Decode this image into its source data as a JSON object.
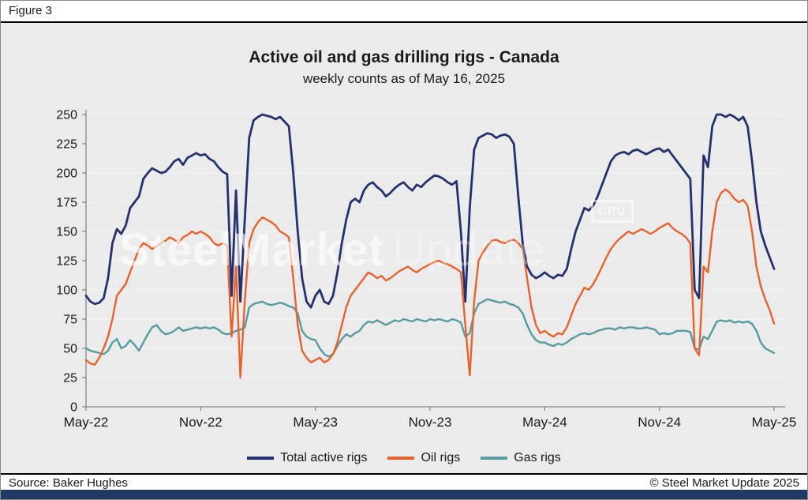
{
  "figure_label": "Figure 3",
  "title": "Active oil and gas drilling rigs - Canada",
  "subtitle": "weekly counts as of May 16, 2025",
  "source": "Source: Baker Hughes",
  "copyright": "© Steel Market Update 2025",
  "watermark": {
    "part1": "SteelMarket",
    "part2": "Update",
    "logo": "CRU"
  },
  "colors": {
    "background": "#ebebeb",
    "footer_bar": "#1f3864",
    "grid": "#f6f6f6",
    "axis": "#6b6b6b"
  },
  "chart_data": {
    "type": "line",
    "title": "Active oil and gas drilling rigs - Canada",
    "subtitle": "weekly counts as of May 16, 2025",
    "x_unit": "week",
    "x_start": "May-22",
    "x_end": "May-25",
    "ylim": [
      0,
      250
    ],
    "ytick_step": 25,
    "grid": true,
    "legend_position": "bottom",
    "xticks": [
      {
        "index": 0,
        "label": "May-22"
      },
      {
        "index": 26,
        "label": "Nov-22"
      },
      {
        "index": 52,
        "label": "May-23"
      },
      {
        "index": 78,
        "label": "Nov-23"
      },
      {
        "index": 104,
        "label": "May-24"
      },
      {
        "index": 130,
        "label": "Nov-24"
      },
      {
        "index": 156,
        "label": "May-25"
      }
    ],
    "series": [
      {
        "name": "Total active rigs",
        "color": "#25316d",
        "width": 2.8,
        "values": [
          95,
          90,
          88,
          89,
          93,
          110,
          140,
          152,
          148,
          155,
          170,
          175,
          180,
          195,
          200,
          204,
          202,
          200,
          201,
          205,
          210,
          212,
          207,
          213,
          215,
          217,
          215,
          216,
          212,
          210,
          205,
          201,
          199,
          95,
          185,
          90,
          160,
          230,
          245,
          248,
          250,
          249,
          248,
          246,
          248,
          244,
          240,
          200,
          150,
          110,
          90,
          85,
          95,
          100,
          90,
          88,
          95,
          115,
          140,
          160,
          175,
          178,
          175,
          185,
          190,
          192,
          188,
          185,
          180,
          183,
          187,
          190,
          192,
          188,
          185,
          190,
          188,
          192,
          195,
          198,
          197,
          195,
          192,
          190,
          193,
          150,
          90,
          170,
          220,
          230,
          232,
          234,
          233,
          230,
          232,
          233,
          231,
          225,
          180,
          140,
          120,
          113,
          110,
          112,
          115,
          112,
          110,
          113,
          112,
          118,
          135,
          150,
          160,
          170,
          168,
          172,
          180,
          190,
          200,
          210,
          215,
          217,
          218,
          216,
          219,
          220,
          218,
          216,
          218,
          220,
          221,
          218,
          220,
          215,
          210,
          205,
          200,
          195,
          100,
          93,
          215,
          205,
          240,
          250,
          250,
          248,
          250,
          248,
          245,
          248,
          240,
          210,
          175,
          150,
          138,
          128,
          118
        ]
      },
      {
        "name": "Oil rigs",
        "color": "#e8622d",
        "width": 2.4,
        "values": [
          40,
          37,
          36,
          42,
          50,
          60,
          75,
          95,
          100,
          105,
          115,
          125,
          135,
          140,
          138,
          135,
          137,
          140,
          142,
          145,
          143,
          140,
          145,
          147,
          150,
          148,
          150,
          148,
          145,
          140,
          138,
          140,
          138,
          60,
          120,
          25,
          90,
          140,
          152,
          158,
          162,
          160,
          158,
          155,
          150,
          148,
          145,
          110,
          70,
          48,
          42,
          38,
          40,
          42,
          38,
          40,
          45,
          55,
          70,
          85,
          95,
          100,
          105,
          110,
          115,
          113,
          110,
          112,
          108,
          110,
          113,
          116,
          118,
          120,
          117,
          115,
          118,
          120,
          122,
          124,
          125,
          123,
          122,
          120,
          118,
          115,
          70,
          27,
          90,
          125,
          132,
          138,
          142,
          143,
          141,
          140,
          142,
          143,
          140,
          135,
          110,
          85,
          70,
          63,
          65,
          62,
          60,
          63,
          62,
          68,
          78,
          88,
          95,
          102,
          100,
          105,
          112,
          120,
          128,
          135,
          140,
          144,
          147,
          150,
          148,
          150,
          152,
          150,
          148,
          150,
          153,
          155,
          157,
          153,
          150,
          148,
          145,
          140,
          50,
          44,
          120,
          115,
          150,
          175,
          183,
          186,
          183,
          178,
          175,
          177,
          172,
          150,
          120,
          103,
          92,
          83,
          71
        ]
      },
      {
        "name": "Gas rigs",
        "color": "#579ba1",
        "width": 2.4,
        "values": [
          50,
          48,
          47,
          46,
          45,
          48,
          55,
          58,
          50,
          52,
          57,
          53,
          48,
          55,
          62,
          68,
          70,
          65,
          62,
          63,
          65,
          68,
          65,
          66,
          67,
          68,
          67,
          68,
          67,
          68,
          66,
          63,
          62,
          63,
          65,
          66,
          68,
          85,
          88,
          89,
          90,
          88,
          87,
          88,
          89,
          88,
          86,
          85,
          80,
          65,
          60,
          58,
          57,
          50,
          45,
          43,
          45,
          52,
          58,
          62,
          60,
          63,
          65,
          70,
          73,
          72,
          74,
          72,
          70,
          72,
          74,
          73,
          75,
          74,
          73,
          75,
          74,
          73,
          75,
          74,
          75,
          74,
          73,
          75,
          74,
          72,
          60,
          63,
          80,
          88,
          90,
          92,
          91,
          90,
          89,
          90,
          88,
          87,
          85,
          80,
          70,
          62,
          57,
          55,
          55,
          53,
          52,
          54,
          53,
          55,
          58,
          60,
          62,
          63,
          62,
          63,
          65,
          66,
          67,
          67,
          66,
          68,
          67,
          68,
          68,
          67,
          67,
          68,
          67,
          66,
          62,
          63,
          62,
          63,
          65,
          65,
          65,
          64,
          50,
          49,
          60,
          58,
          65,
          73,
          74,
          73,
          74,
          72,
          73,
          72,
          73,
          71,
          65,
          55,
          50,
          48,
          46
        ]
      }
    ]
  }
}
